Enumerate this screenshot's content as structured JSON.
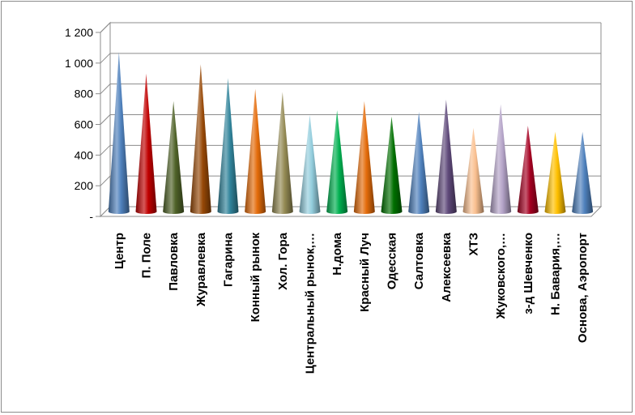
{
  "chart_data": {
    "type": "bar",
    "style": "3d-cone",
    "title": "",
    "xlabel": "",
    "ylabel": "",
    "ylim": [
      0,
      1200
    ],
    "yticks": [
      0,
      200,
      400,
      600,
      800,
      1000,
      1200
    ],
    "ytick_labels": [
      "-",
      "200",
      "400",
      "600",
      "800",
      "1 000",
      "1 200"
    ],
    "grid": true,
    "legend": "none",
    "categories": [
      "Центр",
      "П. Поле",
      "Павловка",
      "Журавлевка",
      "Гагарина",
      "Конный рынок",
      "Хол. Гора",
      "Центральный рынок,…",
      "Н.дома",
      "Красный Луч",
      "Одесская",
      "Салтовка",
      "Алексеевка",
      "ХТЗ",
      "Жуковского,…",
      "з-д Шевченко",
      "Н. Бавария,…",
      "Основа, Аэропорт"
    ],
    "values": [
      1040,
      900,
      720,
      960,
      870,
      800,
      780,
      630,
      660,
      720,
      620,
      650,
      730,
      545,
      700,
      560,
      520,
      520
    ],
    "colors": [
      "#4f81bd",
      "#c00000",
      "#4f6228",
      "#974806",
      "#31849b",
      "#e46c0a",
      "#948a54",
      "#93cddd",
      "#00b050",
      "#e46c0a",
      "#007000",
      "#4f81bd",
      "#5f497a",
      "#fac090",
      "#b3a2c7",
      "#a50021",
      "#ffc000",
      "#4f81bd"
    ]
  }
}
